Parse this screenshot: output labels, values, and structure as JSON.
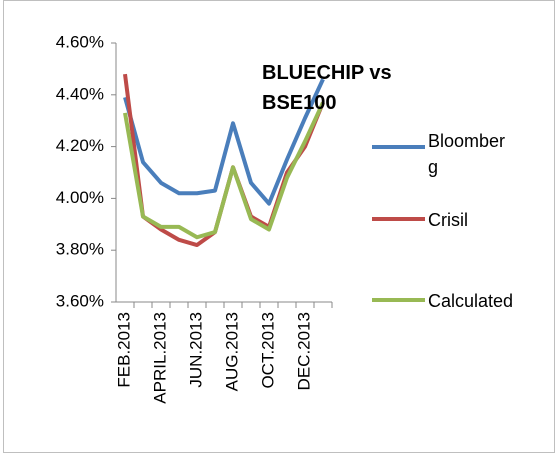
{
  "chart_data": {
    "type": "line",
    "title": "BLUECHIP vs BSE100",
    "categories": [
      "FEB.2013",
      null,
      "APRIL.2013",
      null,
      "JUN.2013",
      null,
      "AUG.2013",
      null,
      "OCT.2013",
      null,
      "DEC.2013",
      null
    ],
    "series": [
      {
        "name": "Bloomberg",
        "color": "#4a7ebb",
        "values": [
          4.39,
          4.14,
          4.06,
          4.02,
          4.02,
          4.03,
          4.29,
          4.06,
          3.98,
          4.15,
          4.31,
          4.46
        ]
      },
      {
        "name": "Crisil",
        "color": "#be4b48",
        "values": [
          4.48,
          3.93,
          3.88,
          3.84,
          3.82,
          3.87,
          4.12,
          3.93,
          3.89,
          4.1,
          4.2,
          4.37
        ]
      },
      {
        "name": "Calculated",
        "color": "#98b954",
        "values": [
          4.33,
          3.93,
          3.89,
          3.89,
          3.85,
          3.87,
          4.12,
          3.92,
          3.88,
          4.08,
          4.22,
          4.37
        ]
      }
    ],
    "ylim": [
      3.6,
      4.6
    ],
    "yticks": [
      {
        "value": 3.6,
        "label": "3.60%"
      },
      {
        "value": 3.8,
        "label": "3.80%"
      },
      {
        "value": 4.0,
        "label": "4.00%"
      },
      {
        "value": 4.2,
        "label": "4.20%"
      },
      {
        "value": 4.4,
        "label": "4.40%"
      },
      {
        "value": 4.6,
        "label": "4.60%"
      }
    ],
    "grid": false
  }
}
